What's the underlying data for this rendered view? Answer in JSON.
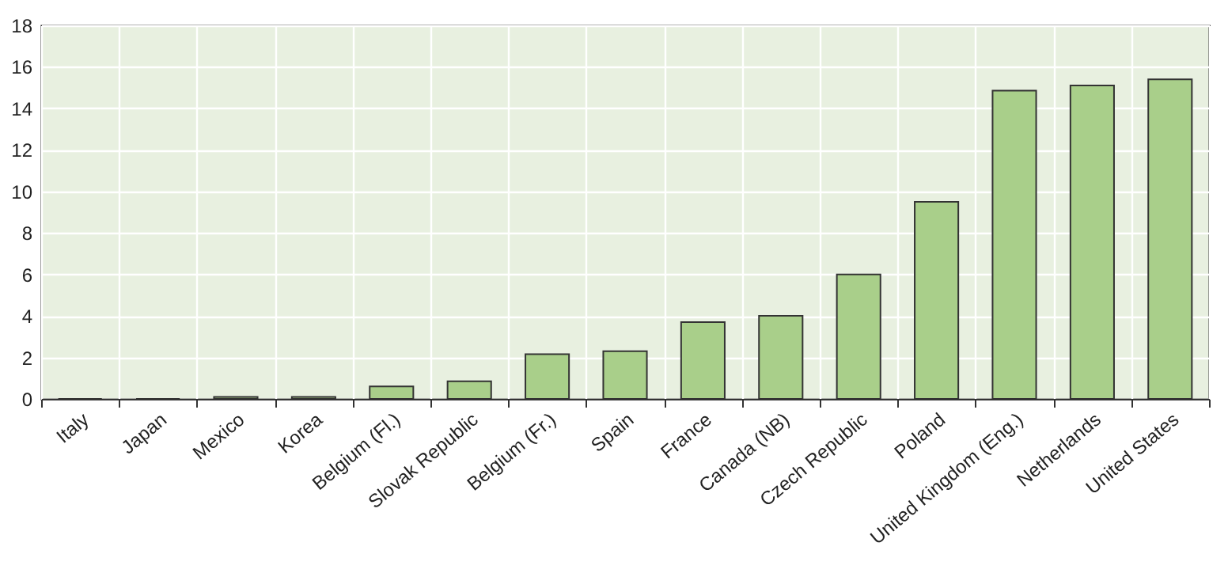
{
  "chart_data": {
    "type": "bar",
    "categories": [
      "Italy",
      "Japan",
      "Mexico",
      "Korea",
      "Belgium (Fl.)",
      "Slovak Republic",
      "Belgium (Fr.)",
      "Spain",
      "France",
      "Canada (NB)",
      "Czech Republic",
      "Poland",
      "United Kingdom (Eng.)",
      "Netherlands",
      "United States"
    ],
    "values": [
      0,
      0,
      0.1,
      0.1,
      0.6,
      0.85,
      2.15,
      2.3,
      3.7,
      4.0,
      6.0,
      9.5,
      14.85,
      15.1,
      15.4
    ],
    "color": "#a9cf8a",
    "ylim": [
      0,
      18
    ],
    "yticks": [
      0,
      2,
      4,
      6,
      8,
      10,
      12,
      14,
      16,
      18
    ],
    "grid": true
  }
}
